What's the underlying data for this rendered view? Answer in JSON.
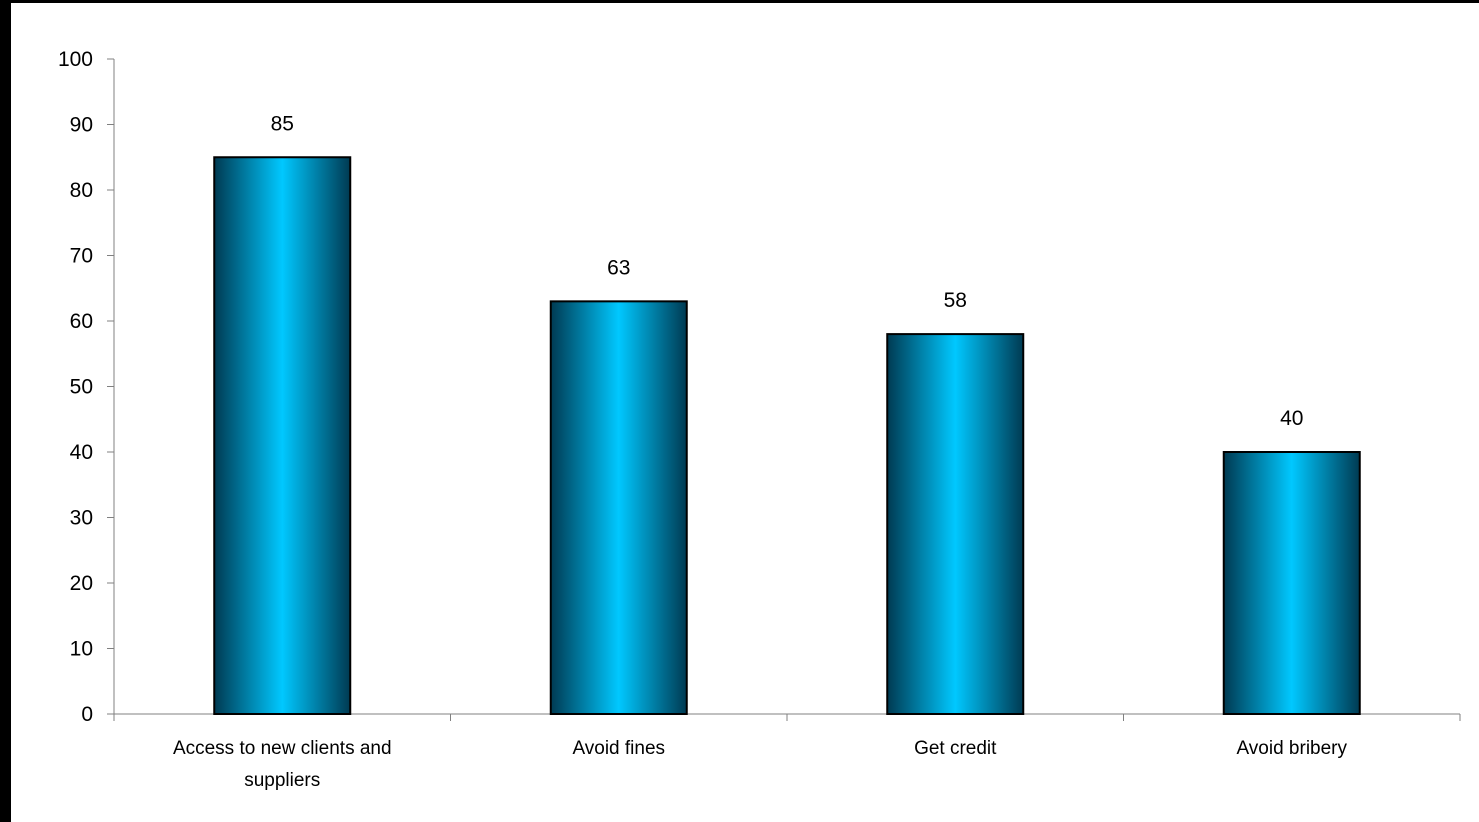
{
  "chart_data": {
    "type": "bar",
    "categories": [
      [
        "Access to new clients and",
        "suppliers"
      ],
      [
        "Avoid fines"
      ],
      [
        "Get credit"
      ],
      [
        "Avoid bribery"
      ]
    ],
    "values": [
      85,
      63,
      58,
      40
    ],
    "data_labels": [
      "85",
      "63",
      "58",
      "40"
    ],
    "y_ticks": [
      "0",
      "10",
      "20",
      "30",
      "40",
      "50",
      "60",
      "70",
      "80",
      "90",
      "100"
    ],
    "ylim": [
      0,
      100
    ],
    "title": "",
    "xlabel": "",
    "ylabel": "",
    "grid": false,
    "legend": "none",
    "colors": {
      "bar_edge": "#00bff0",
      "bar_center": "#00c8ff",
      "bar_dark": "#003a52",
      "bar_outline": "#000000",
      "axis": "#808080"
    }
  }
}
